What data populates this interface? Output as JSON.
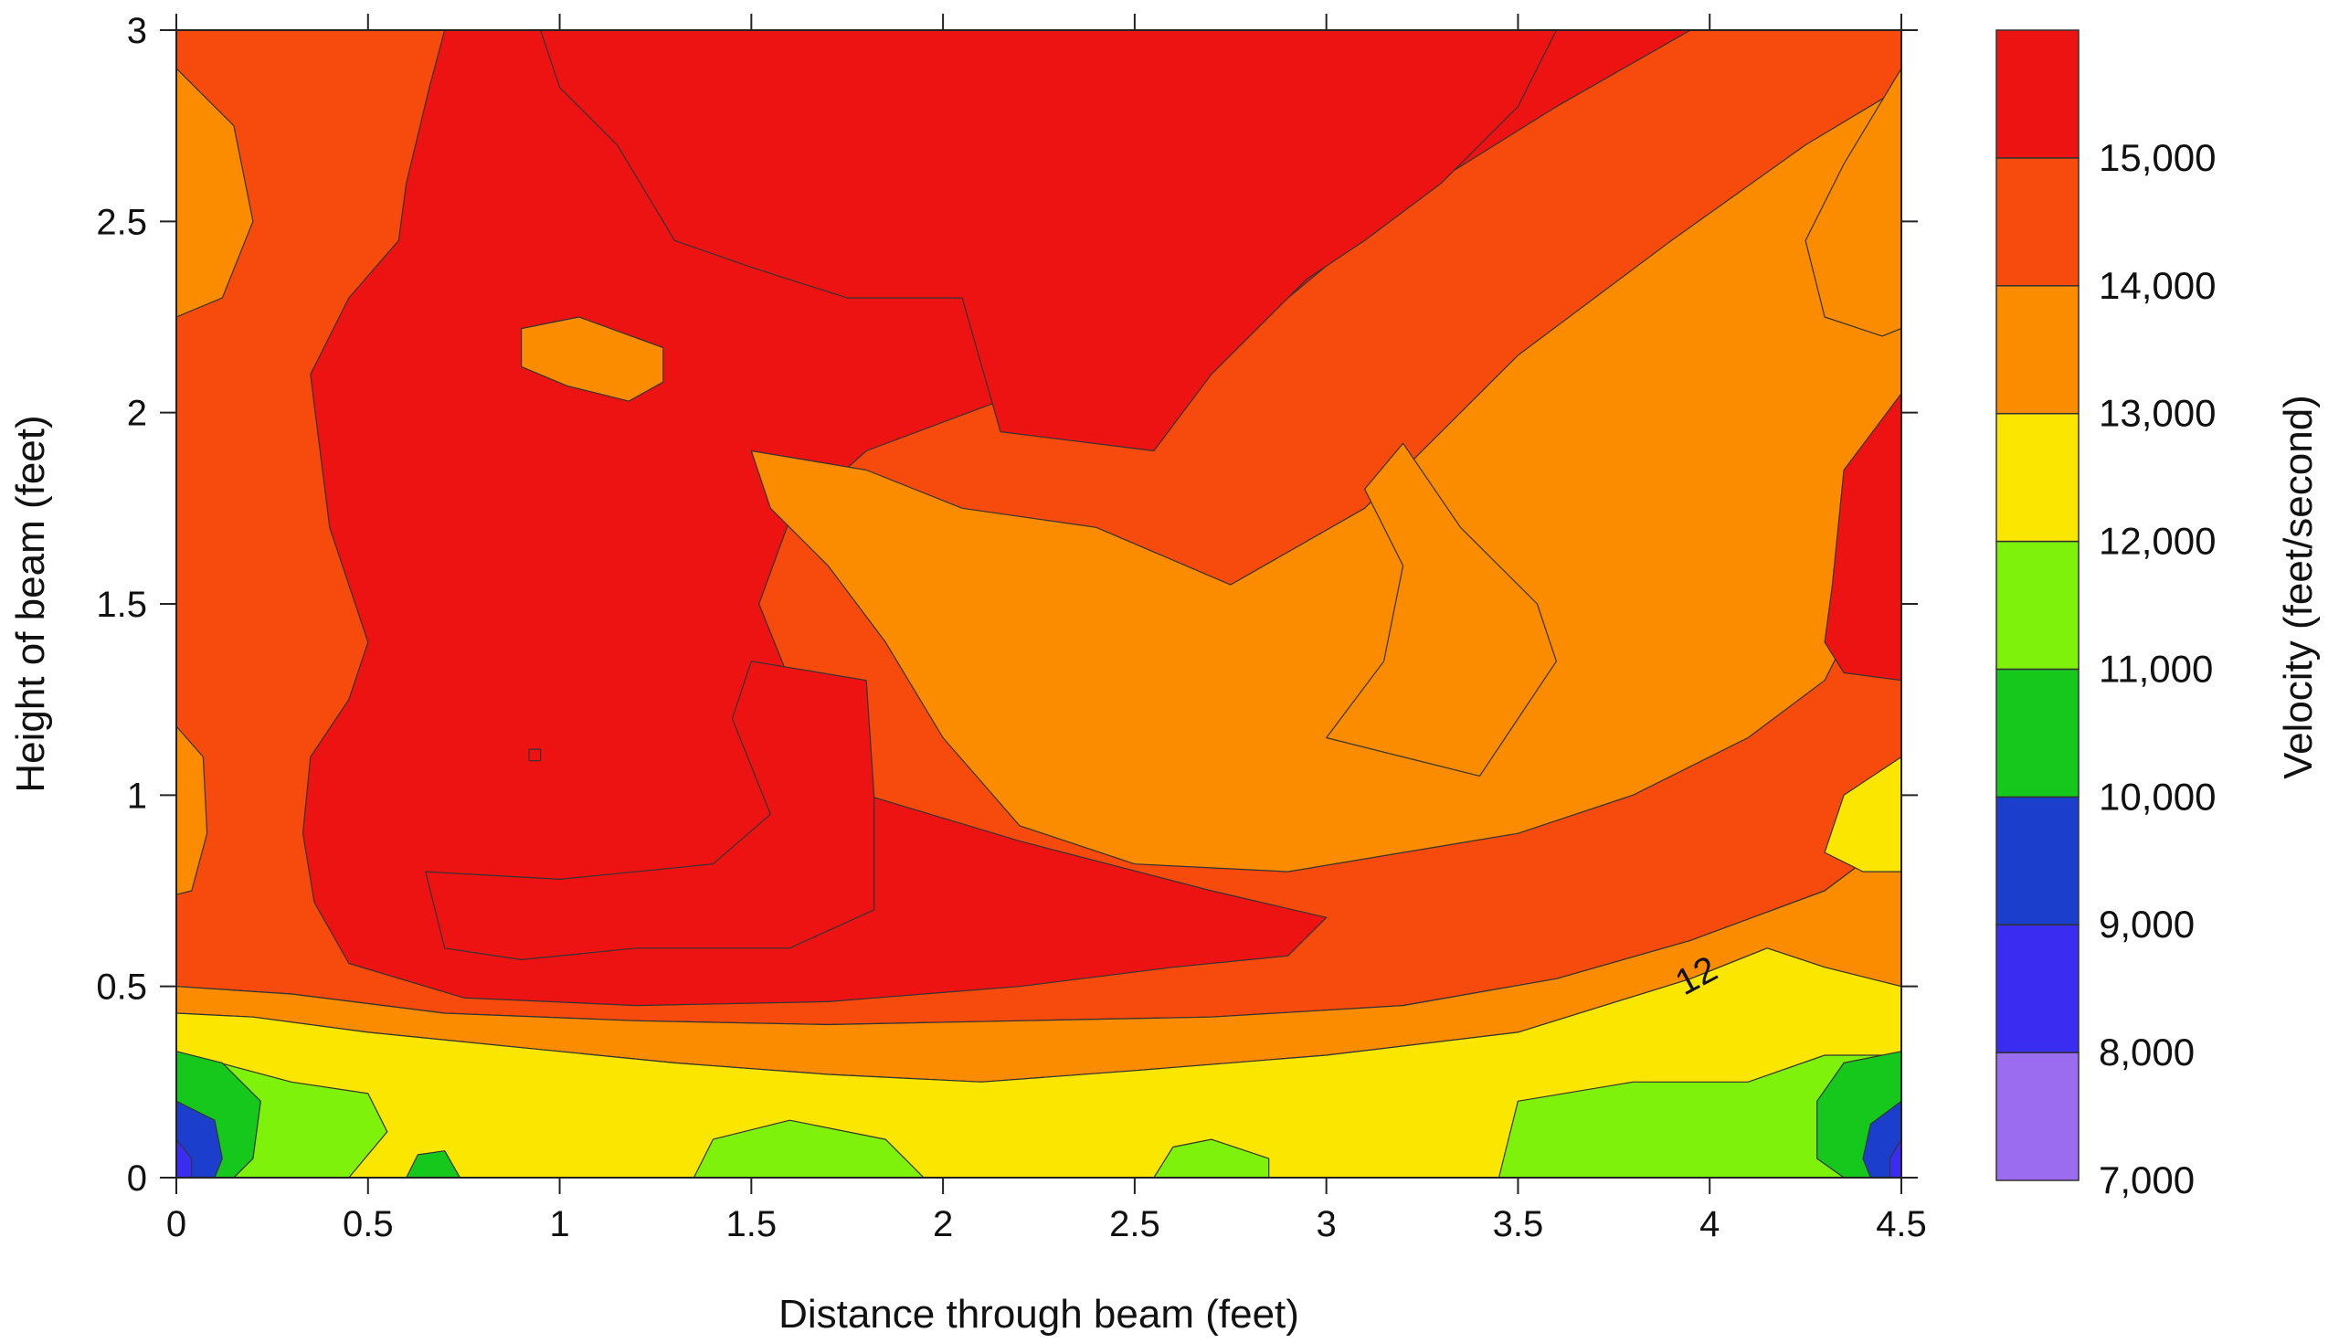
{
  "chart_data": {
    "type": "contour",
    "xlabel": "Distance through beam (feet)",
    "ylabel": "Height of beam (feet)",
    "colorbar_label": "Velocity (feet/second)",
    "xlim": [
      0,
      4.5
    ],
    "ylim": [
      0,
      3
    ],
    "x_ticks": [
      "0",
      "0.5",
      "1",
      "1.5",
      "2",
      "2.5",
      "3",
      "3.5",
      "4",
      "4.5"
    ],
    "y_ticks": [
      "0",
      "0.5",
      "1",
      "1.5",
      "2",
      "2.5",
      "3"
    ],
    "levels": [
      7000,
      8000,
      9000,
      10000,
      11000,
      12000,
      13000,
      14000,
      15000
    ],
    "level_labels": [
      "7,000",
      "8,000",
      "9,000",
      "10,000",
      "11,000",
      "12,000",
      "13,000",
      "14,000",
      "15,000"
    ],
    "band_colors": [
      "#9b6bf0",
      "#3b2cf2",
      "#1b3fcc",
      "#16c81c",
      "#7ff20c",
      "#fbe600",
      "#fb8c00",
      "#f74b0d",
      "#ee1313"
    ],
    "contour_label": "12",
    "regions": [
      {
        "level": 14000,
        "points": [
          [
            0,
            0.5
          ],
          [
            0.3,
            0.48
          ],
          [
            0.7,
            0.43
          ],
          [
            1.2,
            0.41
          ],
          [
            1.7,
            0.4
          ],
          [
            2.2,
            0.41
          ],
          [
            2.7,
            0.42
          ],
          [
            3.2,
            0.45
          ],
          [
            3.6,
            0.52
          ],
          [
            3.95,
            0.62
          ],
          [
            4.3,
            0.75
          ],
          [
            4.5,
            0.9
          ],
          [
            4.5,
            3
          ],
          [
            0,
            3
          ]
        ]
      },
      {
        "level": 15000,
        "points": [
          [
            0.25,
            3
          ],
          [
            0.7,
            3
          ],
          [
            0.66,
            2.85
          ],
          [
            0.6,
            2.6
          ],
          [
            0.58,
            2.45
          ],
          [
            0.45,
            2.3
          ],
          [
            0.35,
            2.1
          ],
          [
            0.4,
            1.7
          ],
          [
            0.5,
            1.4
          ],
          [
            0.45,
            1.25
          ],
          [
            0.35,
            1.1
          ],
          [
            0.33,
            0.9
          ],
          [
            0.36,
            0.72
          ],
          [
            0.45,
            0.56
          ],
          [
            0.75,
            0.47
          ],
          [
            1.2,
            0.45
          ],
          [
            1.7,
            0.46
          ],
          [
            2.2,
            0.5
          ],
          [
            2.6,
            0.55
          ],
          [
            2.9,
            0.58
          ],
          [
            3.0,
            0.68
          ],
          [
            2.7,
            0.75
          ],
          [
            2.2,
            0.88
          ],
          [
            1.8,
            1.0
          ],
          [
            1.6,
            1.3
          ],
          [
            1.52,
            1.5
          ],
          [
            1.6,
            1.72
          ],
          [
            1.8,
            1.9
          ],
          [
            2.2,
            2.05
          ],
          [
            2.5,
            2.1
          ],
          [
            2.9,
            2.3
          ],
          [
            3.2,
            2.55
          ],
          [
            3.6,
            2.8
          ],
          [
            3.95,
            3
          ]
        ]
      },
      {
        "level": 13000,
        "points": [
          [
            1.5,
            1.9
          ],
          [
            1.8,
            1.85
          ],
          [
            2.05,
            1.75
          ],
          [
            2.4,
            1.7
          ],
          [
            2.75,
            1.55
          ],
          [
            3.1,
            1.75
          ],
          [
            3.5,
            2.15
          ],
          [
            3.9,
            2.45
          ],
          [
            4.25,
            2.7
          ],
          [
            4.5,
            2.85
          ],
          [
            4.5,
            1.9
          ],
          [
            4.4,
            1.5
          ],
          [
            4.3,
            1.3
          ],
          [
            4.1,
            1.15
          ],
          [
            3.8,
            1.0
          ],
          [
            3.5,
            0.9
          ],
          [
            3.2,
            0.85
          ],
          [
            2.9,
            0.8
          ],
          [
            2.5,
            0.82
          ],
          [
            2.2,
            0.92
          ],
          [
            2.0,
            1.15
          ],
          [
            1.85,
            1.4
          ],
          [
            1.7,
            1.6
          ],
          [
            1.55,
            1.75
          ]
        ]
      },
      {
        "level": 13000,
        "points": [
          [
            0.9,
            2.22
          ],
          [
            1.05,
            2.25
          ],
          [
            1.27,
            2.17
          ],
          [
            1.27,
            2.08
          ],
          [
            1.18,
            2.03
          ],
          [
            1.02,
            2.07
          ],
          [
            0.9,
            2.12
          ]
        ]
      },
      {
        "level": 15000,
        "points": [
          [
            4.5,
            2.05
          ],
          [
            4.35,
            1.85
          ],
          [
            4.32,
            1.55
          ],
          [
            4.3,
            1.4
          ],
          [
            4.35,
            1.32
          ],
          [
            4.5,
            1.3
          ]
        ]
      },
      {
        "level": 15000,
        "points": [
          [
            0.92,
            1.12
          ],
          [
            0.95,
            1.12
          ],
          [
            0.95,
            1.09
          ],
          [
            0.92,
            1.09
          ]
        ]
      },
      {
        "level": 16000,
        "points": [
          [
            0.95,
            3
          ],
          [
            3.6,
            3
          ],
          [
            3.5,
            2.8
          ],
          [
            3.3,
            2.6
          ],
          [
            3.1,
            2.45
          ],
          [
            2.95,
            2.35
          ],
          [
            2.7,
            2.1
          ],
          [
            2.55,
            1.9
          ],
          [
            2.15,
            1.95
          ],
          [
            2.05,
            2.3
          ],
          [
            1.75,
            2.3
          ],
          [
            1.5,
            2.38
          ],
          [
            1.3,
            2.45
          ],
          [
            1.15,
            2.7
          ],
          [
            1.0,
            2.85
          ]
        ]
      },
      {
        "level": 16000,
        "points": [
          [
            0.65,
            0.8
          ],
          [
            1.0,
            0.78
          ],
          [
            1.4,
            0.82
          ],
          [
            1.55,
            0.95
          ],
          [
            1.45,
            1.2
          ],
          [
            1.5,
            1.35
          ],
          [
            1.8,
            1.3
          ],
          [
            1.82,
            1.0
          ],
          [
            1.82,
            0.7
          ],
          [
            1.6,
            0.6
          ],
          [
            1.2,
            0.6
          ],
          [
            0.9,
            0.57
          ],
          [
            0.7,
            0.6
          ]
        ]
      },
      {
        "level": 13000,
        "points": [
          [
            0,
            2.9
          ],
          [
            0.15,
            2.75
          ],
          [
            0.2,
            2.5
          ],
          [
            0.12,
            2.3
          ],
          [
            0,
            2.25
          ]
        ]
      },
      {
        "level": 13000,
        "points": [
          [
            4.5,
            2.9
          ],
          [
            4.35,
            2.65
          ],
          [
            4.25,
            2.45
          ],
          [
            4.3,
            2.25
          ],
          [
            4.45,
            2.2
          ],
          [
            4.5,
            2.22
          ]
        ]
      },
      {
        "level": 13000,
        "points": [
          [
            3.2,
            1.92
          ],
          [
            3.35,
            1.7
          ],
          [
            3.55,
            1.5
          ],
          [
            3.6,
            1.35
          ],
          [
            3.4,
            1.05
          ],
          [
            3.2,
            1.1
          ],
          [
            3.0,
            1.15
          ],
          [
            3.15,
            1.35
          ],
          [
            3.2,
            1.6
          ],
          [
            3.1,
            1.8
          ]
        ]
      },
      {
        "level": 13000,
        "points": [
          [
            0,
            1.18
          ],
          [
            0.07,
            1.1
          ],
          [
            0.08,
            0.9
          ],
          [
            0.04,
            0.75
          ],
          [
            0,
            0.74
          ]
        ]
      },
      {
        "level": 13000,
        "points": [
          [
            0,
            0.5
          ],
          [
            0.3,
            0.48
          ],
          [
            0.7,
            0.43
          ],
          [
            1.2,
            0.41
          ],
          [
            1.7,
            0.4
          ],
          [
            2.2,
            0.41
          ],
          [
            2.7,
            0.42
          ],
          [
            3.2,
            0.45
          ],
          [
            3.6,
            0.52
          ],
          [
            3.95,
            0.62
          ],
          [
            4.3,
            0.75
          ],
          [
            4.5,
            0.9
          ],
          [
            4.5,
            0.5
          ],
          [
            4.3,
            0.55
          ],
          [
            4.15,
            0.6
          ],
          [
            3.95,
            0.52
          ],
          [
            3.5,
            0.38
          ],
          [
            3.0,
            0.32
          ],
          [
            2.5,
            0.28
          ],
          [
            2.1,
            0.25
          ],
          [
            1.7,
            0.27
          ],
          [
            1.3,
            0.3
          ],
          [
            0.9,
            0.34
          ],
          [
            0.5,
            0.38
          ],
          [
            0.2,
            0.42
          ],
          [
            0,
            0.43
          ]
        ]
      },
      {
        "level": 12000,
        "points": [
          [
            0,
            0.43
          ],
          [
            0.2,
            0.42
          ],
          [
            0.5,
            0.38
          ],
          [
            0.9,
            0.34
          ],
          [
            1.3,
            0.3
          ],
          [
            1.7,
            0.27
          ],
          [
            2.1,
            0.25
          ],
          [
            2.5,
            0.28
          ],
          [
            3.0,
            0.32
          ],
          [
            3.5,
            0.38
          ],
          [
            3.95,
            0.52
          ],
          [
            4.15,
            0.6
          ],
          [
            4.3,
            0.55
          ],
          [
            4.5,
            0.5
          ],
          [
            4.5,
            0
          ],
          [
            0,
            0
          ]
        ]
      },
      {
        "level": 12000,
        "points": [
          [
            4.5,
            1.1
          ],
          [
            4.35,
            1.0
          ],
          [
            4.3,
            0.85
          ],
          [
            4.4,
            0.8
          ],
          [
            4.5,
            0.8
          ]
        ]
      },
      {
        "level": 11000,
        "points": [
          [
            1.35,
            0
          ],
          [
            1.4,
            0.1
          ],
          [
            1.6,
            0.15
          ],
          [
            1.85,
            0.1
          ],
          [
            1.95,
            0
          ]
        ]
      },
      {
        "level": 11000,
        "points": [
          [
            2.55,
            0
          ],
          [
            2.6,
            0.08
          ],
          [
            2.7,
            0.1
          ],
          [
            2.85,
            0.05
          ],
          [
            2.85,
            0
          ]
        ]
      },
      {
        "level": 11000,
        "points": [
          [
            3.45,
            0
          ],
          [
            3.5,
            0.2
          ],
          [
            3.8,
            0.25
          ],
          [
            4.1,
            0.25
          ],
          [
            4.3,
            0.32
          ],
          [
            4.5,
            0.32
          ],
          [
            4.5,
            0
          ]
        ]
      },
      {
        "level": 11000,
        "points": [
          [
            0,
            0.33
          ],
          [
            0.3,
            0.25
          ],
          [
            0.5,
            0.22
          ],
          [
            0.55,
            0.12
          ],
          [
            0.45,
            0
          ],
          [
            0,
            0
          ]
        ]
      },
      {
        "level": 10000,
        "points": [
          [
            0,
            0.33
          ],
          [
            0.12,
            0.3
          ],
          [
            0.22,
            0.2
          ],
          [
            0.2,
            0.05
          ],
          [
            0.15,
            0
          ],
          [
            0,
            0
          ]
        ]
      },
      {
        "level": 10000,
        "points": [
          [
            4.5,
            0.33
          ],
          [
            4.35,
            0.3
          ],
          [
            4.28,
            0.2
          ],
          [
            4.28,
            0.05
          ],
          [
            4.35,
            0
          ],
          [
            4.5,
            0
          ]
        ]
      },
      {
        "level": 10000,
        "points": [
          [
            0.6,
            0
          ],
          [
            0.63,
            0.06
          ],
          [
            0.7,
            0.07
          ],
          [
            0.74,
            0
          ]
        ]
      },
      {
        "level": 9000,
        "points": [
          [
            0,
            0.2
          ],
          [
            0.1,
            0.15
          ],
          [
            0.12,
            0.05
          ],
          [
            0.1,
            0
          ],
          [
            0,
            0
          ]
        ]
      },
      {
        "level": 9000,
        "points": [
          [
            4.5,
            0.2
          ],
          [
            4.42,
            0.14
          ],
          [
            4.4,
            0.05
          ],
          [
            4.42,
            0
          ],
          [
            4.5,
            0
          ]
        ]
      },
      {
        "level": 8000,
        "points": [
          [
            0,
            0.1
          ],
          [
            0.04,
            0.05
          ],
          [
            0.04,
            0
          ],
          [
            0,
            0
          ]
        ]
      },
      {
        "level": 8000,
        "points": [
          [
            4.5,
            0.1
          ],
          [
            4.47,
            0.05
          ],
          [
            4.47,
            0
          ],
          [
            4.5,
            0
          ]
        ]
      }
    ]
  }
}
